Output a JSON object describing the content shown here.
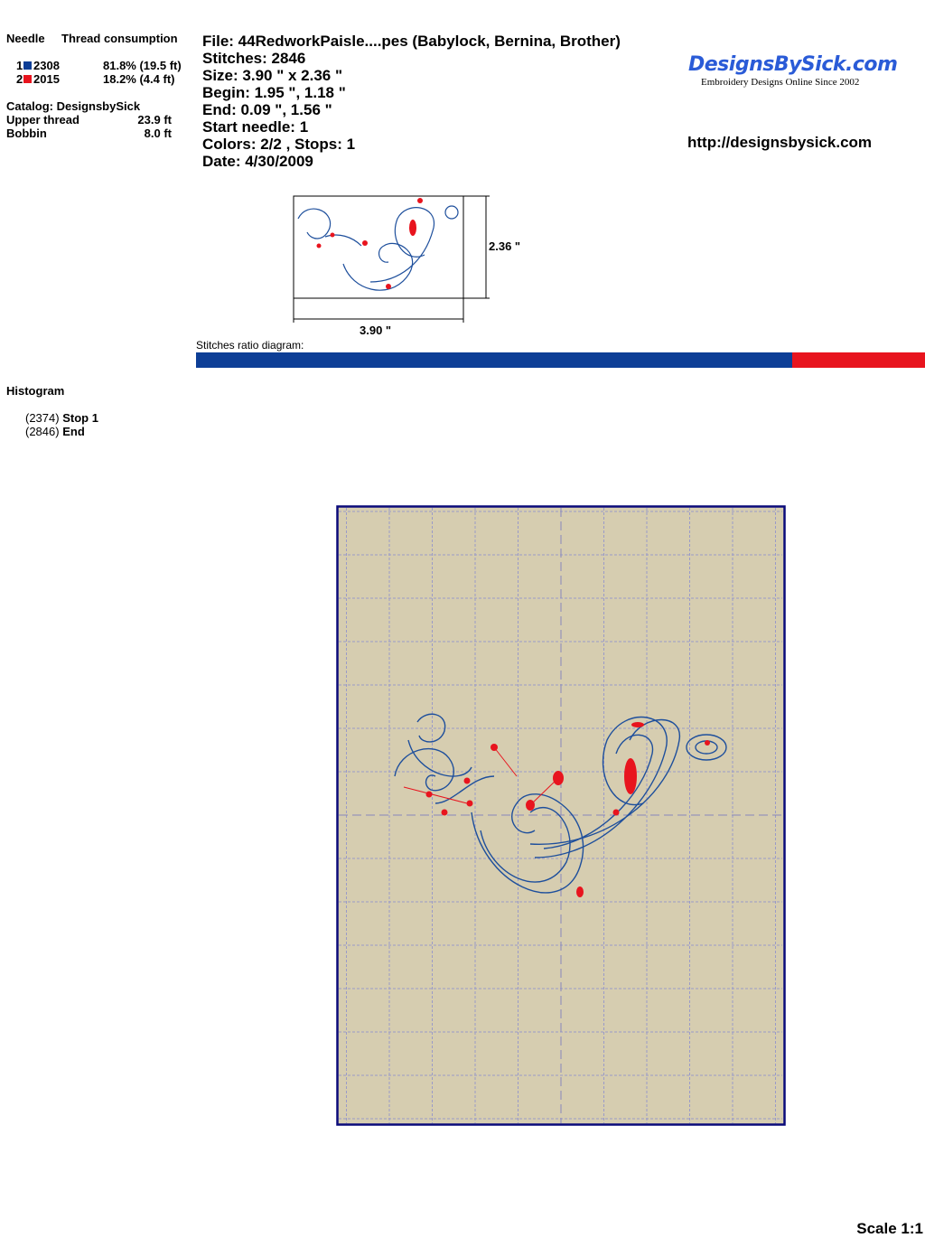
{
  "left": {
    "col_needle": "Needle",
    "col_thread": "Thread consumption",
    "threads": [
      {
        "needle": "1",
        "code": "2308",
        "color": "#0d3e96",
        "consumption": "81.8% (19.5 ft)"
      },
      {
        "needle": "2",
        "code": "2015",
        "color": "#e8141e",
        "consumption": "18.2% (4.4 ft)"
      }
    ],
    "catalog": "Catalog: DesignsbySick",
    "upper_label": "Upper thread",
    "upper_value": "23.9 ft",
    "bobbin_label": "Bobbin",
    "bobbin_value": "8.0 ft"
  },
  "info": {
    "file": "File: 44RedworkPaisle....pes  (Babylock, Bernina, Brother)",
    "stitches": "Stitches: 2846",
    "size": "Size: 3.90 \" x 2.36 \"",
    "begin": "Begin: 1.95 \", 1.18 \"",
    "end": "End: 0.09 \", 1.56 \"",
    "start_needle": "Start needle: 1",
    "colors": "Colors: 2/2 , Stops: 1",
    "date": "Date: 4/30/2009"
  },
  "logo": {
    "name": "DesignsBySick.com",
    "tagline": "Embroidery Designs Online Since 2002"
  },
  "url": "http://designsbysick.com",
  "thumb": {
    "height_label": "2.36 \"",
    "width_label": "3.90 \""
  },
  "ratio": {
    "label": "Stitches ratio diagram:",
    "blue_percent": 81.8,
    "red_percent": 18.2
  },
  "histogram": {
    "title": "Histogram",
    "items": [
      {
        "count": "(2374)",
        "label": "Stop 1"
      },
      {
        "count": "(2846)",
        "label": "End"
      }
    ]
  },
  "preview": {
    "background": "#d6cdb0",
    "border": "#0a0a7a"
  },
  "scale": "Scale 1:1"
}
